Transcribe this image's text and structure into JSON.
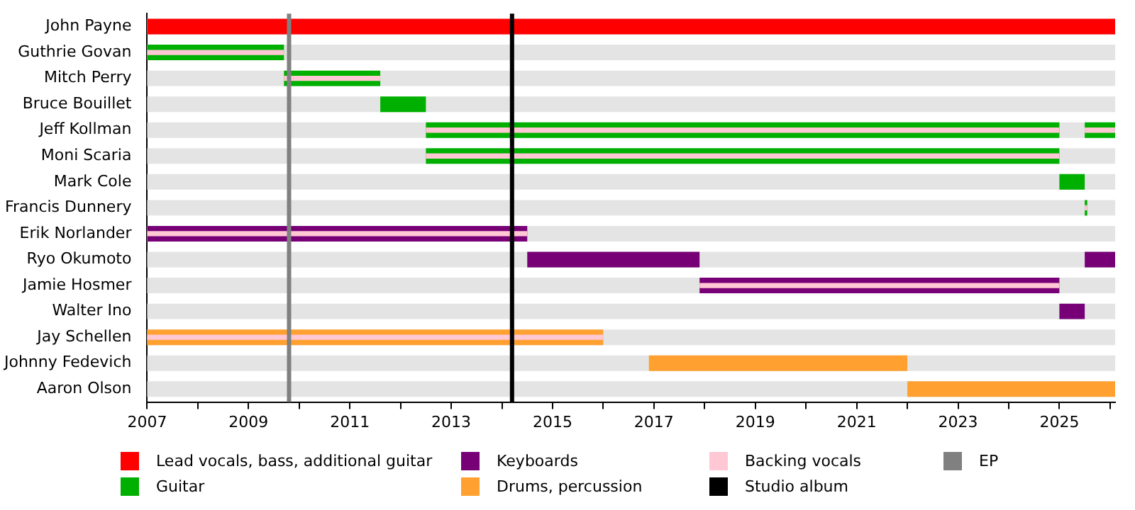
{
  "chart_data": {
    "type": "bar",
    "orientation": "horizontal",
    "categories": [
      "John Payne",
      "Guthrie Govan",
      "Mitch Perry",
      "Bruce Bouillet",
      "Jeff Kollman",
      "Moni Scaria",
      "Mark Cole",
      "Francis Dunnery",
      "Erik Norlander",
      "Ryo Okumoto",
      "Jamie Hosmer",
      "Walter Ino",
      "Jay Schellen",
      "Johnny Fedevich",
      "Aaron Olson"
    ],
    "series": [
      {
        "name": "Lead vocals, bass, additional guitar",
        "color": "#ff0000",
        "base": [
          2007,
          null,
          null,
          null,
          null,
          null,
          null,
          null,
          null,
          null,
          null,
          null,
          null,
          null,
          null
        ],
        "values": [
          19.1,
          null,
          null,
          null,
          null,
          null,
          null,
          null,
          null,
          null,
          null,
          null,
          null,
          null,
          null
        ]
      },
      {
        "name": "Guitar",
        "color": "#00b000",
        "base": [
          null,
          2007,
          2009.7,
          2011.6,
          2012.5,
          2012.5,
          2025.0,
          2025.5,
          null,
          null,
          null,
          null,
          null,
          null,
          null
        ],
        "values": [
          null,
          2.7,
          1.9,
          0.9,
          12.5,
          12.5,
          0.5,
          0.05,
          null,
          null,
          null,
          null,
          null,
          null,
          null
        ]
      },
      {
        "color": "#00b000",
        "base": [
          null,
          null,
          null,
          null,
          2025.5,
          null,
          null,
          null,
          null,
          null,
          null,
          null,
          null,
          null,
          null
        ],
        "values": [
          null,
          null,
          null,
          null,
          0.6,
          null,
          null,
          null,
          null,
          null,
          null,
          null,
          null,
          null,
          null
        ]
      },
      {
        "name": "Keyboards",
        "color": "#770077",
        "base": [
          null,
          null,
          null,
          null,
          null,
          null,
          null,
          null,
          2007,
          2014.5,
          2017.9,
          2025.0,
          null,
          null,
          null
        ],
        "values": [
          null,
          null,
          null,
          null,
          null,
          null,
          null,
          null,
          7.5,
          3.4,
          7.1,
          0.5,
          null,
          null,
          null
        ]
      },
      {
        "color": "#770077",
        "base": [
          null,
          null,
          null,
          null,
          null,
          null,
          null,
          null,
          null,
          2025.5,
          null,
          null,
          null,
          null,
          null
        ],
        "values": [
          null,
          null,
          null,
          null,
          null,
          null,
          null,
          null,
          null,
          0.6,
          null,
          null,
          null,
          null,
          null
        ]
      },
      {
        "name": "Drums, percussion",
        "color": "#ffa030",
        "base": [
          null,
          null,
          null,
          null,
          null,
          null,
          null,
          null,
          null,
          null,
          null,
          null,
          2007,
          2016.9,
          2022.0
        ],
        "values": [
          null,
          null,
          null,
          null,
          null,
          null,
          null,
          null,
          null,
          null,
          null,
          null,
          9.0,
          5.1,
          4.1
        ]
      },
      {
        "name": "Backing vocals",
        "color": "#ffc8d4",
        "type": "bar",
        "base": [
          null,
          2007,
          2009.7,
          null,
          2012.5,
          2012.5,
          null,
          2025.5,
          2007,
          null,
          2017.9,
          null,
          2007,
          null,
          null
        ],
        "values": [
          null,
          2.7,
          1.9,
          null,
          12.5,
          12.5,
          null,
          0.05,
          7.5,
          null,
          7.1,
          null,
          9.0,
          null,
          null
        ]
      },
      {
        "color": "#ffc8d4",
        "type": "bar",
        "base": [
          null,
          null,
          null,
          null,
          2025.5,
          null,
          null,
          null,
          null,
          null,
          null,
          null,
          null,
          null,
          null
        ],
        "values": [
          null,
          null,
          null,
          null,
          0.6,
          null,
          null,
          null,
          null,
          null,
          null,
          null,
          null,
          null,
          null
        ]
      }
    ],
    "xlim": [
      2007,
      2026.1
    ],
    "xticks": [
      2007,
      {
        "value": 2008,
        "label": null
      },
      2009,
      {
        "value": 2010,
        "label": null
      },
      2011,
      {
        "value": 2012,
        "label": null
      },
      2013,
      {
        "value": 2014,
        "label": null
      },
      2015,
      {
        "value": 2016,
        "label": null
      },
      2017,
      {
        "value": 2018,
        "label": null
      },
      2019,
      {
        "value": 2020,
        "label": null
      },
      2021,
      {
        "value": 2022,
        "label": null
      },
      2023,
      {
        "value": 2024,
        "label": null
      },
      2025,
      {
        "value": 2026,
        "label": null
      }
    ],
    "ref_lines": [
      {
        "axis": "x",
        "value": 2014.2,
        "label": "Studio album",
        "color": "#000000"
      },
      {
        "axis": "x",
        "value": 2009.8,
        "label": "EP",
        "color": "#808080"
      }
    ],
    "legend": "bottom"
  }
}
